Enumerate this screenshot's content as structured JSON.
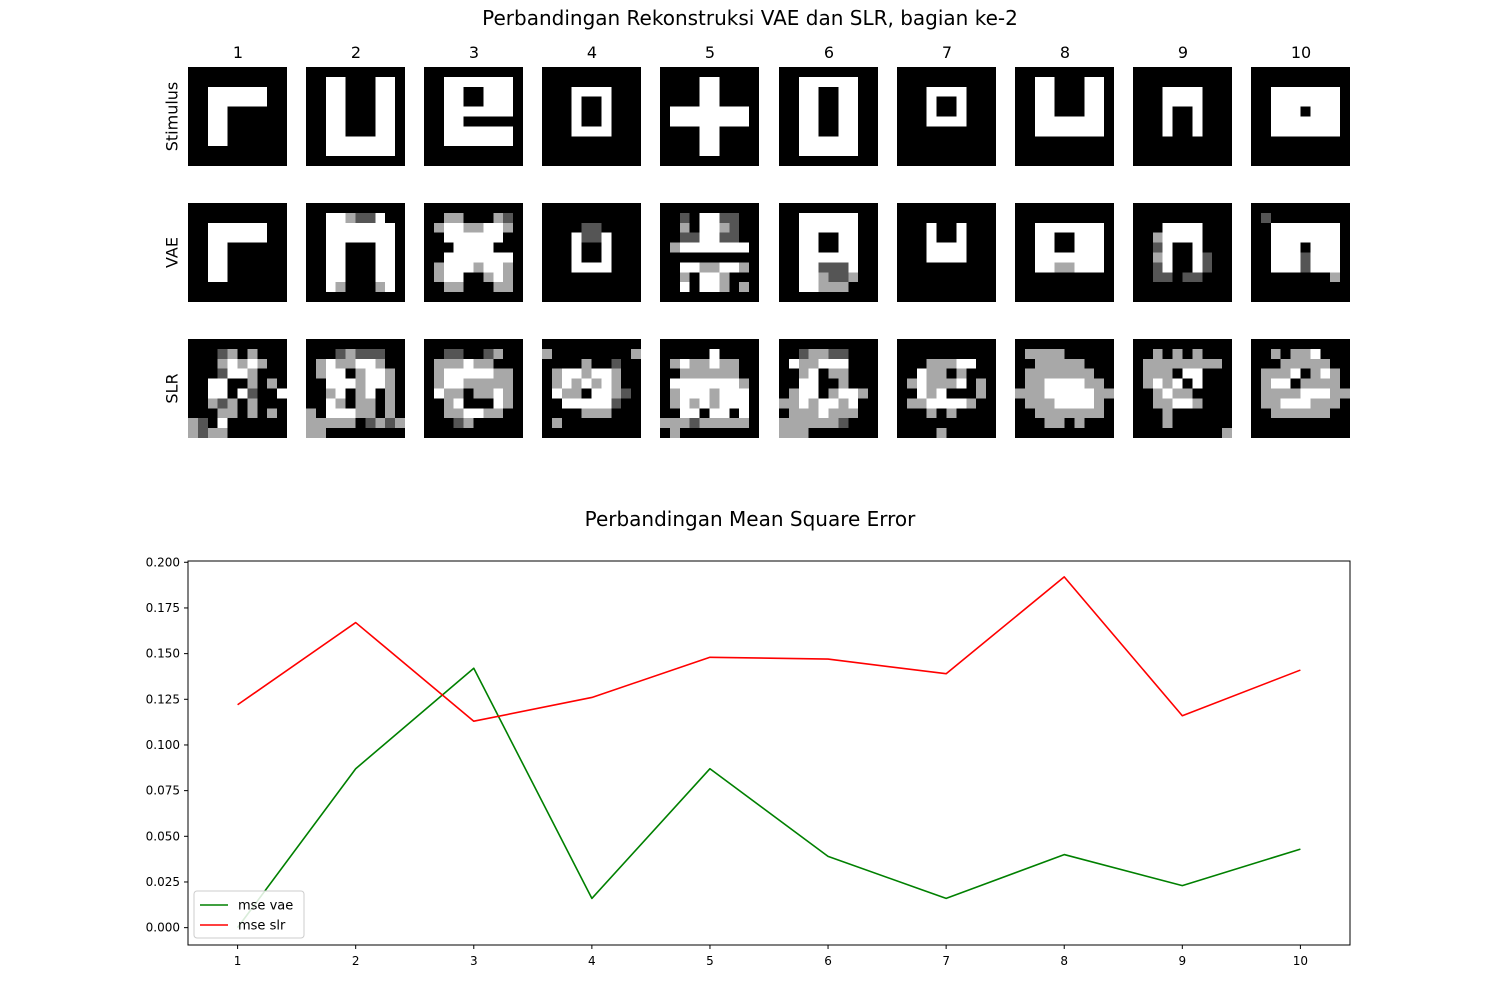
{
  "figure": {
    "title": "Perbandingan Rekonstruksi VAE dan SLR, bagian ke-2",
    "columns": [
      "1",
      "2",
      "3",
      "4",
      "5",
      "6",
      "7",
      "8",
      "9",
      "10"
    ],
    "rows": [
      "Stimulus",
      "VAE",
      "SLR"
    ],
    "tiles": {
      "Stimulus": [
        [
          "0000000000",
          "0000000000",
          "0033333300",
          "0033333300",
          "0033000000",
          "0033000000",
          "0033000000",
          "0033000000",
          "0000000000",
          "0000000000"
        ],
        [
          "0000000000",
          "0033000330",
          "0033000330",
          "0033000330",
          "0033000330",
          "0033000330",
          "0033000330",
          "0033333330",
          "0033333330",
          "0000000000"
        ],
        [
          "0000000000",
          "0033333330",
          "0033003330",
          "0033003330",
          "0033333330",
          "0033000000",
          "0033333330",
          "0033333330",
          "0000000000",
          "0000000000"
        ],
        [
          "0000000000",
          "0000000000",
          "0003333000",
          "0003003000",
          "0003003000",
          "0003003000",
          "0003333000",
          "0000000000",
          "0000000000",
          "0000000000"
        ],
        [
          "0000000000",
          "0000330000",
          "0000330000",
          "0000330000",
          "0333333330",
          "0333333330",
          "0000330000",
          "0000330000",
          "0000330000",
          "0000000000"
        ],
        [
          "0000000000",
          "0033333300",
          "0033003300",
          "0033003300",
          "0033003300",
          "0033003300",
          "0033003300",
          "0033333300",
          "0033333300",
          "0000000000"
        ],
        [
          "0000000000",
          "0000000000",
          "0003333000",
          "0003003000",
          "0003003000",
          "0003333000",
          "0000000000",
          "0000000000",
          "0000000000",
          "0000000000"
        ],
        [
          "0000000000",
          "0033000330",
          "0033000330",
          "0033000330",
          "0033000330",
          "0033333330",
          "0033333330",
          "0000000000",
          "0000000000",
          "0000000000"
        ],
        [
          "0000000000",
          "0000000000",
          "0003333000",
          "0003333000",
          "0003003000",
          "0003003000",
          "0003003000",
          "0000000000",
          "0000000000",
          "0000000000"
        ],
        [
          "0000000000",
          "0000000000",
          "0033333330",
          "0033333330",
          "0033303330",
          "0033333330",
          "0033333330",
          "0000000000",
          "0000000000",
          "0000000000"
        ]
      ],
      "VAE": [
        [
          "0000000000",
          "0000000000",
          "0033333300",
          "0033333300",
          "0033000000",
          "0033000000",
          "0033000000",
          "0033000000",
          "0000000000",
          "0000000000"
        ],
        [
          "0000000000",
          "0033211300",
          "0033333330",
          "0033333330",
          "0033000330",
          "0033000330",
          "0033000330",
          "0033000330",
          "0032000230",
          "0000000000"
        ],
        [
          "0000000000",
          "0022000210",
          "0233223320",
          "0033333300",
          "0003333000",
          "0033333330",
          "0233323320",
          "0233002320",
          "0022000220",
          "0000000000"
        ],
        [
          "0000000000",
          "0000000000",
          "0000110000",
          "0003113000",
          "0003003000",
          "0003003000",
          "0003333000",
          "0000000000",
          "0000000000",
          "0000000000"
        ],
        [
          "0000000000",
          "0010331100",
          "0020332100",
          "0011331100",
          "0233333330",
          "0000000000",
          "0033223320",
          "0020332000",
          "0030332020",
          "0000000000"
        ],
        [
          "0000000000",
          "0033333300",
          "0033333300",
          "0033003300",
          "0033003300",
          "0033333300",
          "0033111300",
          "0033211200",
          "0033222000",
          "0000000000"
        ],
        [
          "0000000000",
          "0000000000",
          "0003003000",
          "0003003000",
          "0003333000",
          "0003333000",
          "0000000000",
          "0000000000",
          "0000000000",
          "0000000000"
        ],
        [
          "0000000000",
          "0000000000",
          "0033333330",
          "0033003330",
          "0033003330",
          "0033333330",
          "0033223330",
          "0000000000",
          "0000000000",
          "0000000000"
        ],
        [
          "0000000000",
          "0000000000",
          "0003333000",
          "0023333000",
          "0013003000",
          "0023003100",
          "0013003100",
          "0011011000",
          "0000000000",
          "0000000000"
        ],
        [
          "0000000000",
          "0100000000",
          "0033333330",
          "0033333330",
          "0033303330",
          "0033313330",
          "0033313330",
          "0000000020",
          "0000000000",
          "0000000000"
        ]
      ],
      "SLR": [
        [
          "0000000000",
          "0001202000",
          "0002323200",
          "0001332000",
          "0033002020",
          "0033031003",
          "0021202000",
          "0002202020",
          "2103000000",
          "2122000000"
        ],
        [
          "0000000000",
          "0001211100",
          "0232233200",
          "0233023320",
          "0033323320",
          "0023023020",
          "0032022020",
          "2033322020",
          "2222201212",
          "2200000000"
        ],
        [
          "0000000000",
          "0011001200",
          "0222322000",
          "0233333220",
          "0233222220",
          "0322022320",
          "0023000320",
          "0022332200",
          "0001200000",
          "0000000000"
        ],
        [
          "0000000000",
          "2000000002",
          "0000200100",
          "0233233200",
          "0232323200",
          "0322033210",
          "0033333100",
          "0000222000",
          "0200000000",
          "0000000000"
        ],
        [
          "0000000000",
          "0000030000",
          "0232232200",
          "0022222200",
          "0333333320",
          "0233323330",
          "0232323330",
          "0033033030",
          "2221222220",
          "0200000000"
        ],
        [
          "0000000000",
          "0012211000",
          "0322333000",
          "0023022000",
          "0033002000",
          "0233023320",
          "2232332300",
          "0222322200",
          "2222221000",
          "2220000000"
        ],
        [
          "0000000000",
          "0000000000",
          "0002223300",
          "0032202000",
          "0232223020",
          "0032300020",
          "0223333200",
          "0002020000",
          "0000000000",
          "0000200000"
        ],
        [
          "0000000000",
          "0222200000",
          "0022222000",
          "0222222200",
          "0223333220",
          "2223333322",
          "0222333320",
          "0022222220",
          "0002202000",
          "0000000000"
        ],
        [
          "0000000000",
          "0020202000",
          "0222222220",
          "0222033000",
          "0232303000",
          "0023220000",
          "0022332000",
          "0002000000",
          "0002000000",
          "0000000002"
        ],
        [
          "0000000000",
          "0020223000",
          "0002222200",
          "0222302320",
          "0233022220",
          "0222233322",
          "0223332220",
          "0022222200",
          "0000000000",
          "0000000000"
        ]
      ]
    }
  },
  "chart_data": {
    "type": "line",
    "title": "Perbandingan Mean Square Error",
    "x": [
      1,
      2,
      3,
      4,
      5,
      6,
      7,
      8,
      9,
      10
    ],
    "xlim": [
      0.58,
      10.42
    ],
    "ylim": [
      -0.0095,
      0.2007
    ],
    "yticks": [
      "0.000",
      "0.025",
      "0.050",
      "0.075",
      "0.100",
      "0.125",
      "0.150",
      "0.175",
      "0.200"
    ],
    "ytick_values": [
      0,
      0.025,
      0.05,
      0.075,
      0.1,
      0.125,
      0.15,
      0.175,
      0.2
    ],
    "xticks": [
      "1",
      "2",
      "3",
      "4",
      "5",
      "6",
      "7",
      "8",
      "9",
      "10"
    ],
    "legend_position": "lower-left",
    "series": [
      {
        "name": "mse vae",
        "color": "#008000",
        "values": [
          0.0,
          0.087,
          0.142,
          0.016,
          0.087,
          0.039,
          0.016,
          0.04,
          0.023,
          0.043
        ]
      },
      {
        "name": "mse slr",
        "color": "#ff0000",
        "values": [
          0.122,
          0.167,
          0.113,
          0.126,
          0.148,
          0.147,
          0.139,
          0.192,
          0.116,
          0.141
        ]
      }
    ]
  }
}
